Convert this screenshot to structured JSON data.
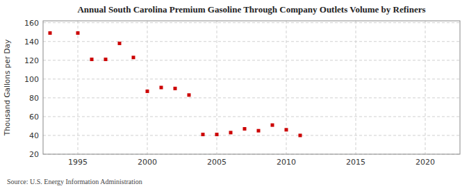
{
  "chart_data": {
    "type": "scatter",
    "title": "Annual South Carolina Premium Gasoline Through Company Outlets Volume by Refiners",
    "y_label": "Thousand Gallons per Day",
    "annotations": [
      "Source: U.S. Energy Information Administration"
    ],
    "x": [
      1993,
      1995,
      1996,
      1997,
      1998,
      1999,
      2000,
      2001,
      2002,
      2003,
      2004,
      2005,
      2006,
      2007,
      2008,
      2009,
      2010,
      2011
    ],
    "values": [
      149,
      149,
      121,
      121,
      138,
      123,
      87,
      91,
      90,
      83,
      41,
      41,
      43,
      47,
      45,
      51,
      46,
      40
    ],
    "color": "#cc0000",
    "marker": "square",
    "xlim": [
      1992.5,
      2022.5
    ],
    "ylim": [
      20,
      162
    ],
    "xticks": [
      1995,
      2000,
      2005,
      2010,
      2015,
      2020
    ],
    "yticks": [
      20,
      40,
      60,
      80,
      100,
      120,
      140,
      160
    ],
    "grid": true
  }
}
